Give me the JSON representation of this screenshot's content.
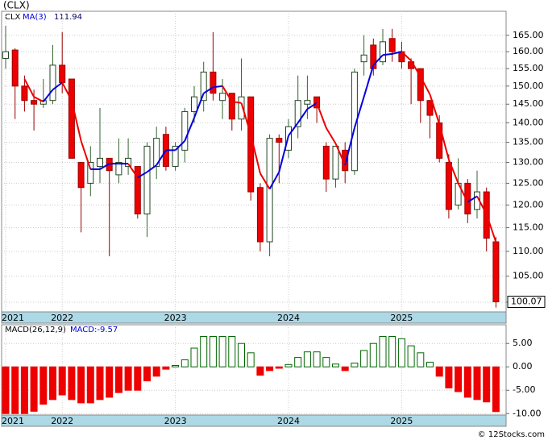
{
  "chart_data": {
    "type": "candlestick",
    "title": "(CLX)",
    "symbol": "CLX",
    "ma_label": "MA(3)",
    "ma_last": "111.94",
    "last_price": "100.07",
    "open": [
      158,
      160.5,
      150,
      146,
      145,
      146,
      156,
      152,
      130,
      125,
      129,
      131,
      127,
      129,
      129,
      118,
      129,
      137,
      129,
      133,
      143,
      146,
      154,
      146,
      148,
      141,
      147,
      124,
      112,
      136,
      133,
      139,
      145,
      147,
      134,
      126,
      133,
      128,
      157,
      162,
      157,
      164,
      160,
      157,
      155,
      146,
      140,
      130,
      120,
      125,
      119,
      123,
      112
    ],
    "high": [
      168,
      161,
      153,
      149,
      152,
      162,
      166,
      152,
      130,
      134,
      144,
      131,
      136,
      136,
      129,
      135,
      139,
      139,
      135,
      144,
      150,
      157,
      166,
      152,
      148,
      158,
      147,
      125,
      137,
      137,
      141,
      153,
      153,
      147,
      135,
      134,
      135,
      155,
      165,
      164,
      167,
      167,
      163,
      158,
      155,
      146,
      142,
      132,
      131,
      126,
      128,
      124,
      113
    ],
    "low": [
      155,
      141,
      143,
      138,
      144,
      145,
      148,
      131,
      114,
      122,
      125,
      109,
      125,
      127,
      117,
      113,
      126,
      128,
      128,
      130,
      140,
      143,
      146,
      141,
      138,
      138,
      121,
      110,
      109,
      125,
      131,
      136,
      141,
      140,
      123,
      124,
      125,
      127,
      153,
      153,
      156,
      157,
      155,
      145,
      140,
      136,
      130,
      117,
      119,
      116,
      117,
      110,
      99
    ],
    "close": [
      160,
      150,
      146,
      145,
      146,
      156,
      151,
      131,
      124,
      130,
      131,
      128,
      130,
      131,
      118,
      134,
      136,
      129,
      134,
      143,
      147,
      154,
      148,
      148,
      141,
      147,
      123,
      112,
      136,
      135,
      139,
      146,
      146,
      144,
      126,
      134,
      128,
      154,
      159,
      155,
      163,
      160,
      157,
      155,
      146,
      142,
      131,
      119,
      125,
      118,
      123,
      112.75,
      100.07
    ],
    "ma": [
      null,
      null,
      152,
      147,
      145.67,
      149,
      151,
      146,
      135.33,
      128.33,
      128.33,
      129.67,
      129.67,
      129.67,
      126.33,
      127.67,
      129.33,
      133,
      133,
      135.33,
      141.33,
      148,
      149.67,
      150,
      145.67,
      145.33,
      137,
      127.33,
      123.67,
      127.67,
      136.67,
      140,
      143.67,
      145.33,
      138.67,
      134.67,
      129.33,
      138.67,
      147,
      156,
      159,
      159.33,
      160,
      157.33,
      152.67,
      147.67,
      139.67,
      130.67,
      125,
      120.67,
      122,
      117.92,
      111.94
    ],
    "up_color": "#ffffff",
    "down_color": "#ee0000",
    "ma_up_color": "#0000dd",
    "ma_down_color": "#ee0000",
    "log_scale": true,
    "grid": true,
    "ylim": [
      98.2,
      172.6
    ],
    "yticks": [
      {
        "value": 100,
        "label": "100.00"
      },
      {
        "value": 105,
        "label": "105.00"
      },
      {
        "value": 110,
        "label": "110.00"
      },
      {
        "value": 115,
        "label": "115.00"
      },
      {
        "value": 120,
        "label": "120.00"
      },
      {
        "value": 125,
        "label": "125.00"
      },
      {
        "value": 130,
        "label": "130.00"
      },
      {
        "value": 135,
        "label": "135.00"
      },
      {
        "value": 140,
        "label": "140.00"
      },
      {
        "value": 145,
        "label": "145.00"
      },
      {
        "value": 150,
        "label": "150.00"
      },
      {
        "value": 155,
        "label": "155.00"
      },
      {
        "value": 160,
        "label": "160.00"
      },
      {
        "value": 165,
        "label": "165.00"
      }
    ],
    "xticks": [
      {
        "value": 0,
        "label": "2021"
      },
      {
        "value": 6,
        "label": "2022"
      },
      {
        "value": 18,
        "label": "2023"
      },
      {
        "value": 30,
        "label": "2024"
      },
      {
        "value": 42,
        "label": "2025"
      }
    ],
    "macd": {
      "title": "MACD(26,12,9)",
      "last": "MACD:-9.57",
      "pos_color": "#006600",
      "neg_color": "#ee0000",
      "values": [
        -10,
        -10,
        -10,
        -9.5,
        -8,
        -7,
        -6,
        -7,
        -7.7,
        -7.7,
        -7,
        -6.5,
        -5.5,
        -5,
        -5,
        -3,
        -2,
        -0.5,
        0.3,
        1.5,
        4,
        6.5,
        6.5,
        6.5,
        6.5,
        5,
        3,
        -1.8,
        -0.8,
        -0.3,
        0.5,
        2,
        3.2,
        3.2,
        2,
        0.6,
        -0.8,
        0.8,
        3.5,
        5,
        6.5,
        6.5,
        6,
        4.5,
        3,
        1,
        -2,
        -4.5,
        -5.3,
        -6.5,
        -7,
        -7.5,
        -9.57
      ],
      "ylim": [
        -10.3,
        9
      ],
      "yticks": [
        {
          "value": 5,
          "label": "5.00"
        },
        {
          "value": 0,
          "label": "0.00"
        },
        {
          "value": -5,
          "label": "-5.00"
        },
        {
          "value": -10,
          "label": "-10.00"
        }
      ]
    },
    "source": "© 12Stocks.com"
  }
}
